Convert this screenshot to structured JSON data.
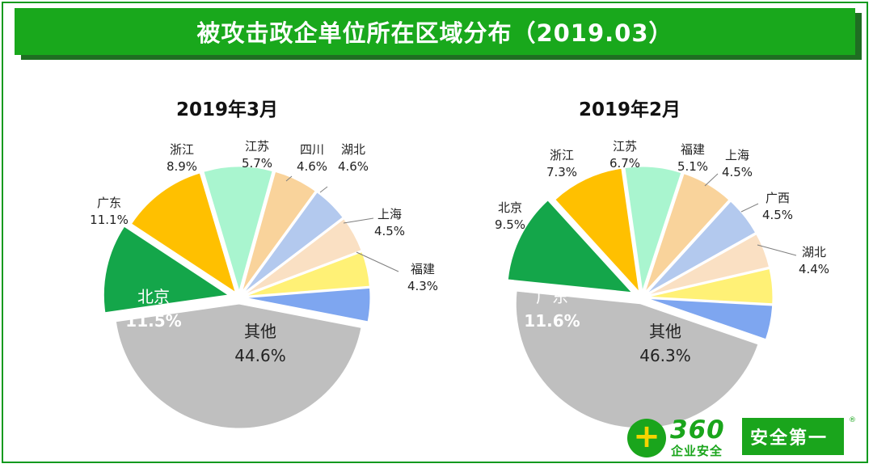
{
  "title": "被攻击政企单位所在区域分布（2019.03）",
  "chart_data": [
    {
      "type": "pie",
      "title": "2019年3月",
      "slices": [
        {
          "name": "其他",
          "value": 44.6,
          "label": "44.6%",
          "color": "#bfbfbf"
        },
        {
          "name": "北京",
          "value": 11.5,
          "label": "11.5%",
          "color": "#14a64a"
        },
        {
          "name": "广东",
          "value": 11.1,
          "label": "11.1%",
          "color": "#ffc000"
        },
        {
          "name": "浙江",
          "value": 8.9,
          "label": "8.9%",
          "color": "#a9f5cf"
        },
        {
          "name": "江苏",
          "value": 5.7,
          "label": "5.7%",
          "color": "#f9d39b"
        },
        {
          "name": "四川",
          "value": 4.6,
          "label": "4.6%",
          "color": "#b3c9ee"
        },
        {
          "name": "湖北",
          "value": 4.6,
          "label": "4.6%",
          "color": "#fae0c3"
        },
        {
          "name": "上海",
          "value": 4.5,
          "label": "4.5%",
          "color": "#fff176"
        },
        {
          "name": "福建",
          "value": 4.3,
          "label": "4.3%",
          "color": "#7ea6f0"
        }
      ]
    },
    {
      "type": "pie",
      "title": "2019年2月",
      "slices": [
        {
          "name": "其他",
          "value": 46.3,
          "label": "46.3%",
          "color": "#bfbfbf"
        },
        {
          "name": "广东",
          "value": 11.6,
          "label": "11.6%",
          "color": "#14a64a"
        },
        {
          "name": "北京",
          "value": 9.5,
          "label": "9.5%",
          "color": "#ffc000"
        },
        {
          "name": "浙江",
          "value": 7.3,
          "label": "7.3%",
          "color": "#a9f5cf"
        },
        {
          "name": "江苏",
          "value": 6.7,
          "label": "6.7%",
          "color": "#f9d39b"
        },
        {
          "name": "福建",
          "value": 5.1,
          "label": "5.1%",
          "color": "#b3c9ee"
        },
        {
          "name": "上海",
          "value": 4.5,
          "label": "4.5%",
          "color": "#fae0c3"
        },
        {
          "name": "广西",
          "value": 4.5,
          "label": "4.5%",
          "color": "#fff176"
        },
        {
          "name": "湖北",
          "value": 4.4,
          "label": "4.4%",
          "color": "#7ea6f0"
        }
      ]
    }
  ],
  "logo": {
    "brand_number": "360",
    "brand_sub": "企业安全",
    "badge": "安全第一",
    "reg_mark": "®"
  }
}
